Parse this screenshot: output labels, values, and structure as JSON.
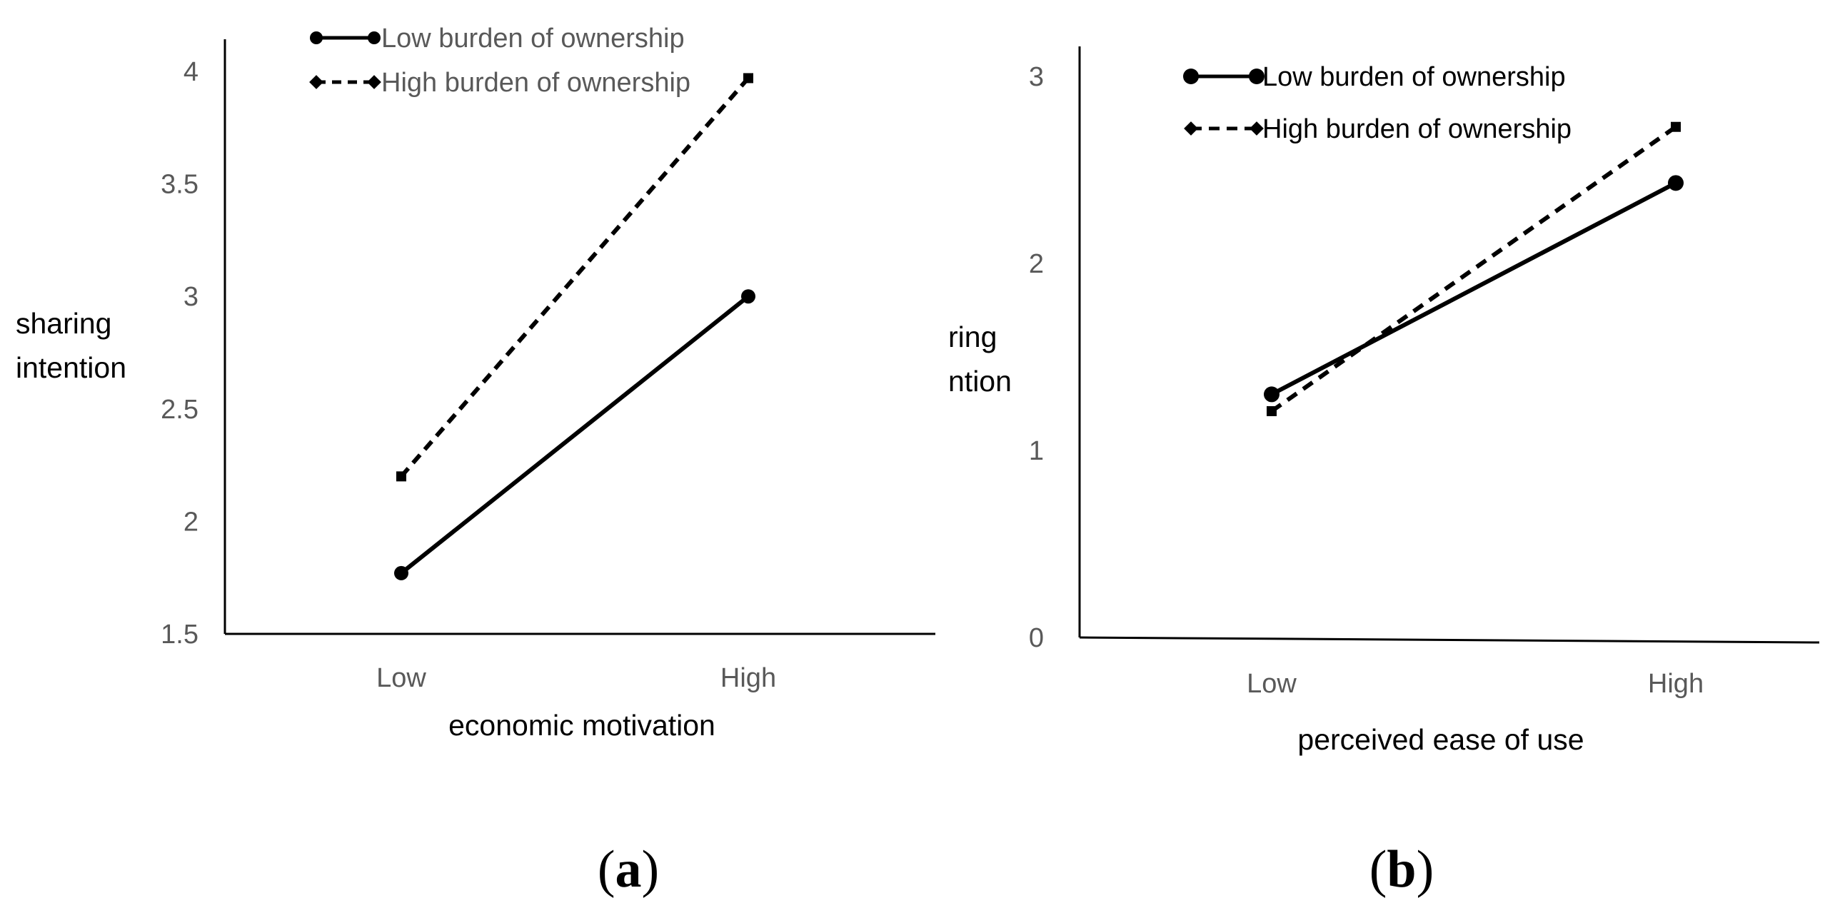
{
  "chart_data": [
    {
      "panel_label": "a",
      "type": "line",
      "categories": [
        "Low",
        "High"
      ],
      "xlabel": "economic motivation",
      "ylabel_lines": [
        "sharing",
        "intention"
      ],
      "ylim": [
        1.5,
        4.0
      ],
      "yticks": [
        "1.5",
        "2",
        "2.5",
        "3",
        "3.5",
        "4"
      ],
      "series": [
        {
          "name": "Low burden of ownership",
          "style": "solid",
          "marker": "circle",
          "values": [
            1.77,
            3.0
          ]
        },
        {
          "name": "High burden of ownership",
          "style": "dashed",
          "marker": "square",
          "values": [
            2.2,
            3.97
          ]
        }
      ],
      "legend": "top-left",
      "grid": false
    },
    {
      "panel_label": "b",
      "type": "line",
      "categories": [
        "Low",
        "High"
      ],
      "xlabel": "perceived ease of use",
      "ylabel_lines": [
        "ring",
        "ntion"
      ],
      "ylim": [
        0,
        3
      ],
      "yticks": [
        "0",
        "1",
        "2",
        "3"
      ],
      "series": [
        {
          "name": "Low burden of ownership",
          "style": "solid",
          "marker": "circle",
          "values": [
            1.3,
            2.43
          ]
        },
        {
          "name": "High burden of ownership",
          "style": "dashed",
          "marker": "square",
          "values": [
            1.21,
            2.73
          ]
        }
      ],
      "legend": "top-left",
      "grid": false
    }
  ],
  "colors": {
    "line": "#000000",
    "tick_text": "#595959"
  }
}
